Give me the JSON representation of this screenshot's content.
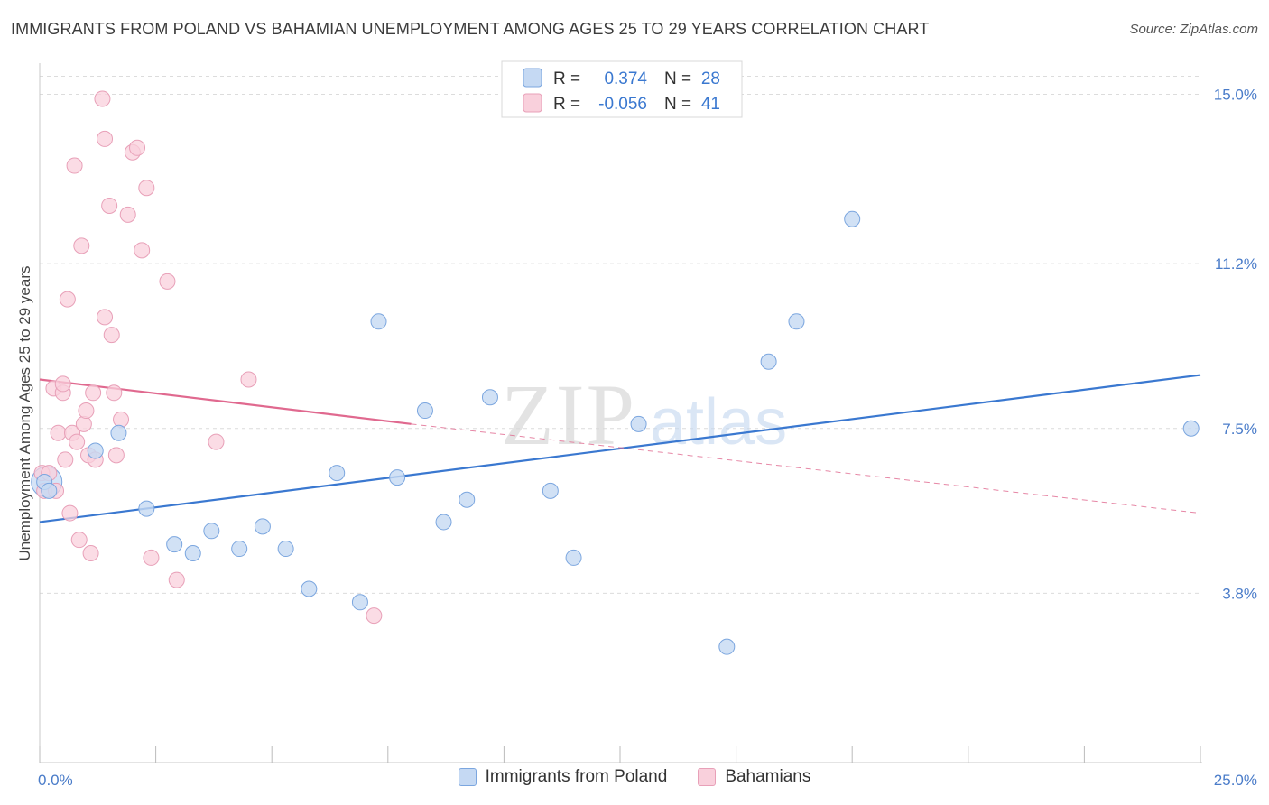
{
  "title": "IMMIGRANTS FROM POLAND VS BAHAMIAN UNEMPLOYMENT AMONG AGES 25 TO 29 YEARS CORRELATION CHART",
  "source": "Source: ZipAtlas.com",
  "watermark": {
    "zip": "ZIP",
    "atlas": "atlas"
  },
  "legend": {
    "r_label": "R =",
    "n_label": "N =",
    "rows": [
      {
        "r": "0.374",
        "n": "28",
        "color": "#a9c7ef",
        "stroke": "#6a9bd8"
      },
      {
        "r": "-0.056",
        "n": "41",
        "color": "#f6c0d0",
        "stroke": "#e08aa6"
      }
    ]
  },
  "bottom_legend": [
    "Immigrants from Poland",
    "Bahamians"
  ],
  "colors": {
    "blue_fill": "#c5d9f3",
    "blue_stroke": "#7ba6df",
    "blue_line": "#3a78d0",
    "pink_fill": "#f9d0dc",
    "pink_stroke": "#e8a0b8",
    "pink_line": "#e0698f",
    "tick_label": "#4a7cc9"
  },
  "chart_data": {
    "type": "scatter",
    "xlabel": "",
    "ylabel": "Unemployment Among Ages 25 to 29 years",
    "xlim": [
      0,
      25
    ],
    "ylim": [
      0,
      15.7
    ],
    "x_tick_labels": [
      {
        "value": 0,
        "label": "0.0%"
      },
      {
        "value": 25,
        "label": "25.0%"
      }
    ],
    "y_tick_labels": [
      {
        "value": 3.8,
        "label": "3.8%"
      },
      {
        "value": 7.5,
        "label": "7.5%"
      },
      {
        "value": 11.2,
        "label": "11.2%"
      },
      {
        "value": 15.0,
        "label": "15.0%"
      }
    ],
    "series": [
      {
        "name": "Immigrants from Poland",
        "points": [
          [
            0.1,
            6.3
          ],
          [
            1.2,
            7.0
          ],
          [
            1.7,
            7.4
          ],
          [
            2.3,
            5.7
          ],
          [
            2.9,
            4.9
          ],
          [
            3.3,
            4.7
          ],
          [
            3.7,
            5.2
          ],
          [
            4.3,
            4.8
          ],
          [
            4.8,
            5.3
          ],
          [
            5.3,
            4.8
          ],
          [
            5.8,
            3.9
          ],
          [
            6.4,
            6.5
          ],
          [
            6.9,
            3.6
          ],
          [
            7.3,
            9.9
          ],
          [
            7.7,
            6.4
          ],
          [
            8.3,
            7.9
          ],
          [
            8.7,
            5.4
          ],
          [
            9.2,
            5.9
          ],
          [
            9.7,
            8.2
          ],
          [
            11.0,
            6.1
          ],
          [
            11.5,
            4.6
          ],
          [
            12.9,
            7.6
          ],
          [
            14.8,
            2.6
          ],
          [
            15.7,
            9.0
          ],
          [
            16.3,
            9.9
          ],
          [
            17.5,
            12.2
          ],
          [
            24.8,
            7.5
          ],
          [
            0.2,
            6.1
          ]
        ],
        "trend": {
          "x": [
            0,
            25
          ],
          "y": [
            5.4,
            8.7
          ]
        }
      },
      {
        "name": "Bahamians",
        "points": [
          [
            0.05,
            6.5
          ],
          [
            0.1,
            6.1
          ],
          [
            0.2,
            6.5
          ],
          [
            0.3,
            8.4
          ],
          [
            0.35,
            6.1
          ],
          [
            0.4,
            7.4
          ],
          [
            0.5,
            8.3
          ],
          [
            0.5,
            8.5
          ],
          [
            0.55,
            6.8
          ],
          [
            0.6,
            10.4
          ],
          [
            0.65,
            5.6
          ],
          [
            0.7,
            7.4
          ],
          [
            0.75,
            13.4
          ],
          [
            0.8,
            7.2
          ],
          [
            0.85,
            5.0
          ],
          [
            0.9,
            11.6
          ],
          [
            0.95,
            7.6
          ],
          [
            1.0,
            7.9
          ],
          [
            1.05,
            6.9
          ],
          [
            1.1,
            4.7
          ],
          [
            1.15,
            8.3
          ],
          [
            1.2,
            6.8
          ],
          [
            1.35,
            14.9
          ],
          [
            1.4,
            10.0
          ],
          [
            1.4,
            14.0
          ],
          [
            1.5,
            12.5
          ],
          [
            1.55,
            9.6
          ],
          [
            1.6,
            8.3
          ],
          [
            1.65,
            6.9
          ],
          [
            1.75,
            7.7
          ],
          [
            1.9,
            12.3
          ],
          [
            2.0,
            13.7
          ],
          [
            2.1,
            13.8
          ],
          [
            2.2,
            11.5
          ],
          [
            2.3,
            12.9
          ],
          [
            2.4,
            4.6
          ],
          [
            2.75,
            10.8
          ],
          [
            2.95,
            4.1
          ],
          [
            3.8,
            7.2
          ],
          [
            4.5,
            8.6
          ],
          [
            7.2,
            3.3
          ]
        ],
        "trend": {
          "x": [
            0,
            8.0
          ],
          "y": [
            8.6,
            7.6
          ]
        },
        "trend_extension": {
          "x": [
            8.0,
            25
          ],
          "y": [
            7.6,
            5.6
          ]
        }
      }
    ]
  }
}
